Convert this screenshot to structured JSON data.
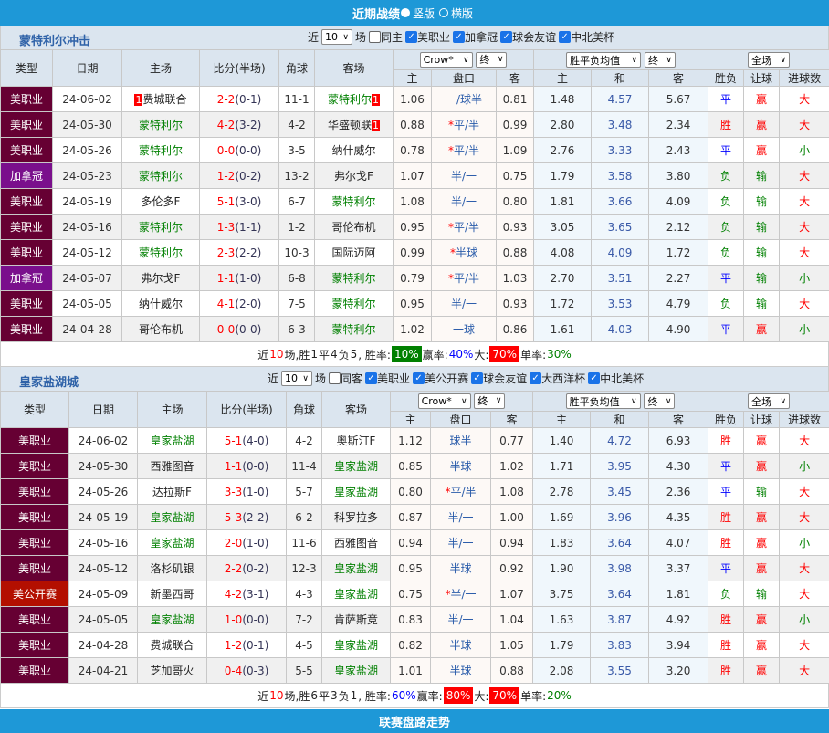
{
  "header": {
    "title": "近期战绩",
    "option1": "竖版",
    "option2": "横版",
    "selected": "竖版"
  },
  "footer": {
    "title": "联赛盘路走势"
  },
  "colors": {
    "header_bg": "#1e98d7",
    "mls": "#660033",
    "cancup": "#7a0f8c",
    "uscup": "#b30f00",
    "win": "#ff0000",
    "draw": "#0000ff",
    "lose": "#008000",
    "focus_team": "#008000"
  },
  "columns": {
    "type": "类型",
    "date": "日期",
    "home": "主场",
    "score": "比分(半场)",
    "corner": "角球",
    "away": "客场",
    "ah_home": "主",
    "ah_line": "盘口",
    "ah_away": "客",
    "eu_home": "主",
    "eu_draw": "和",
    "eu_away": "客",
    "result": "胜负",
    "handicap": "让球",
    "goals": "进球数"
  },
  "sections": [
    {
      "title": "蒙特利尔冲击",
      "near": "近",
      "count": "10",
      "unit": "场",
      "filters": [
        {
          "label": "同主",
          "checked": false
        },
        {
          "label": "美职业",
          "checked": true
        },
        {
          "label": "加拿冠",
          "checked": true
        },
        {
          "label": "球会友谊",
          "checked": true
        },
        {
          "label": "中北美杯",
          "checked": true
        }
      ],
      "selects": {
        "company": "Crow*",
        "ah_phase": "终",
        "eu_type": "胜平负均值",
        "eu_phase": "终",
        "period": "全场"
      },
      "rows": [
        {
          "type": "美职业",
          "type_color": "#660033",
          "date": "24-06-02",
          "home": "费城联合",
          "home_focus": false,
          "home_card": "1",
          "score": "2-2",
          "half": "(0-1)",
          "corner": "11-1",
          "away": "蒙特利尔",
          "away_focus": true,
          "away_card": "1",
          "ah_h": "1.06",
          "star": "",
          "line": "一/球半",
          "ah_a": "0.81",
          "eu_h": "1.48",
          "eu_d": "4.57",
          "eu_a": "5.67",
          "result": "平",
          "handicap": "赢",
          "goals": "大"
        },
        {
          "type": "美职业",
          "type_color": "#660033",
          "date": "24-05-30",
          "home": "蒙特利尔",
          "home_focus": true,
          "home_card": "",
          "score": "4-2",
          "half": "(3-2)",
          "corner": "4-2",
          "away": "华盛顿联",
          "away_focus": false,
          "away_card": "1",
          "ah_h": "0.88",
          "star": "*",
          "line": "平/半",
          "ah_a": "0.99",
          "eu_h": "2.80",
          "eu_d": "3.48",
          "eu_a": "2.34",
          "result": "胜",
          "handicap": "赢",
          "goals": "大"
        },
        {
          "type": "美职业",
          "type_color": "#660033",
          "date": "24-05-26",
          "home": "蒙特利尔",
          "home_focus": true,
          "home_card": "",
          "score": "0-0",
          "half": "(0-0)",
          "corner": "3-5",
          "away": "纳什威尔",
          "away_focus": false,
          "away_card": "",
          "ah_h": "0.78",
          "star": "*",
          "line": "平/半",
          "ah_a": "1.09",
          "eu_h": "2.76",
          "eu_d": "3.33",
          "eu_a": "2.43",
          "result": "平",
          "handicap": "赢",
          "goals": "小"
        },
        {
          "type": "加拿冠",
          "type_color": "#7a0f8c",
          "date": "24-05-23",
          "home": "蒙特利尔",
          "home_focus": true,
          "home_card": "",
          "score": "1-2",
          "half": "(0-2)",
          "corner": "13-2",
          "away": "弗尔戈F",
          "away_focus": false,
          "away_card": "",
          "ah_h": "1.07",
          "star": "",
          "line": "半/一",
          "ah_a": "0.75",
          "eu_h": "1.79",
          "eu_d": "3.58",
          "eu_a": "3.80",
          "result": "负",
          "handicap": "输",
          "goals": "大"
        },
        {
          "type": "美职业",
          "type_color": "#660033",
          "date": "24-05-19",
          "home": "多伦多F",
          "home_focus": false,
          "home_card": "",
          "score": "5-1",
          "half": "(3-0)",
          "corner": "6-7",
          "away": "蒙特利尔",
          "away_focus": true,
          "away_card": "",
          "ah_h": "1.08",
          "star": "",
          "line": "半/一",
          "ah_a": "0.80",
          "eu_h": "1.81",
          "eu_d": "3.66",
          "eu_a": "4.09",
          "result": "负",
          "handicap": "输",
          "goals": "大"
        },
        {
          "type": "美职业",
          "type_color": "#660033",
          "date": "24-05-16",
          "home": "蒙特利尔",
          "home_focus": true,
          "home_card": "",
          "score": "1-3",
          "half": "(1-1)",
          "corner": "1-2",
          "away": "哥伦布机",
          "away_focus": false,
          "away_card": "",
          "ah_h": "0.95",
          "star": "*",
          "line": "平/半",
          "ah_a": "0.93",
          "eu_h": "3.05",
          "eu_d": "3.65",
          "eu_a": "2.12",
          "result": "负",
          "handicap": "输",
          "goals": "大"
        },
        {
          "type": "美职业",
          "type_color": "#660033",
          "date": "24-05-12",
          "home": "蒙特利尔",
          "home_focus": true,
          "home_card": "",
          "score": "2-3",
          "half": "(2-2)",
          "corner": "10-3",
          "away": "国际迈阿",
          "away_focus": false,
          "away_card": "",
          "ah_h": "0.99",
          "star": "*",
          "line": "半球",
          "ah_a": "0.88",
          "eu_h": "4.08",
          "eu_d": "4.09",
          "eu_a": "1.72",
          "result": "负",
          "handicap": "输",
          "goals": "大"
        },
        {
          "type": "加拿冠",
          "type_color": "#7a0f8c",
          "date": "24-05-07",
          "home": "弗尔戈F",
          "home_focus": false,
          "home_card": "",
          "score": "1-1",
          "half": "(1-0)",
          "corner": "6-8",
          "away": "蒙特利尔",
          "away_focus": true,
          "away_card": "",
          "ah_h": "0.79",
          "star": "*",
          "line": "平/半",
          "ah_a": "1.03",
          "eu_h": "2.70",
          "eu_d": "3.51",
          "eu_a": "2.27",
          "result": "平",
          "handicap": "输",
          "goals": "小"
        },
        {
          "type": "美职业",
          "type_color": "#660033",
          "date": "24-05-05",
          "home": "纳什威尔",
          "home_focus": false,
          "home_card": "",
          "score": "4-1",
          "half": "(2-0)",
          "corner": "7-5",
          "away": "蒙特利尔",
          "away_focus": true,
          "away_card": "",
          "ah_h": "0.95",
          "star": "",
          "line": "半/一",
          "ah_a": "0.93",
          "eu_h": "1.72",
          "eu_d": "3.53",
          "eu_a": "4.79",
          "result": "负",
          "handicap": "输",
          "goals": "大"
        },
        {
          "type": "美职业",
          "type_color": "#660033",
          "date": "24-04-28",
          "home": "哥伦布机",
          "home_focus": false,
          "home_card": "",
          "score": "0-0",
          "half": "(0-0)",
          "corner": "6-3",
          "away": "蒙特利尔",
          "away_focus": true,
          "away_card": "",
          "ah_h": "1.02",
          "star": "",
          "line": "一球",
          "ah_a": "0.86",
          "eu_h": "1.61",
          "eu_d": "4.03",
          "eu_a": "4.90",
          "result": "平",
          "handicap": "赢",
          "goals": "小"
        }
      ],
      "summary": {
        "p1": "近",
        "n": "10",
        "p2": "场,胜",
        "w": "1",
        "p3": "平",
        "d": "4",
        "p4": "负",
        "l": "5",
        "p5": ", 胜率:",
        "win_rate": "10%",
        "win_rate_box": "#008000",
        "p6": " 赢率:",
        "cover_rate": "40%",
        "cover_rate_box": "",
        "p7": " 大:",
        "over_rate": "70%",
        "over_rate_box": "#ff0000",
        "p8": " 单率:",
        "odd_rate": "30%"
      }
    },
    {
      "title": "皇家盐湖城",
      "near": "近",
      "count": "10",
      "unit": "场",
      "filters": [
        {
          "label": "同客",
          "checked": false
        },
        {
          "label": "美职业",
          "checked": true
        },
        {
          "label": "美公开赛",
          "checked": true
        },
        {
          "label": "球会友谊",
          "checked": true
        },
        {
          "label": "大西洋杯",
          "checked": true
        },
        {
          "label": "中北美杯",
          "checked": true
        }
      ],
      "selects": {
        "company": "Crow*",
        "ah_phase": "终",
        "eu_type": "胜平负均值",
        "eu_phase": "终",
        "period": "全场"
      },
      "rows": [
        {
          "type": "美职业",
          "type_color": "#660033",
          "date": "24-06-02",
          "home": "皇家盐湖",
          "home_focus": true,
          "home_card": "",
          "score": "5-1",
          "half": "(4-0)",
          "corner": "4-2",
          "away": "奥斯汀F",
          "away_focus": false,
          "away_card": "",
          "ah_h": "1.12",
          "star": "",
          "line": "球半",
          "ah_a": "0.77",
          "eu_h": "1.40",
          "eu_d": "4.72",
          "eu_a": "6.93",
          "result": "胜",
          "handicap": "赢",
          "goals": "大"
        },
        {
          "type": "美职业",
          "type_color": "#660033",
          "date": "24-05-30",
          "home": "西雅图音",
          "home_focus": false,
          "home_card": "",
          "score": "1-1",
          "half": "(0-0)",
          "corner": "11-4",
          "away": "皇家盐湖",
          "away_focus": true,
          "away_card": "",
          "ah_h": "0.85",
          "star": "",
          "line": "半球",
          "ah_a": "1.02",
          "eu_h": "1.71",
          "eu_d": "3.95",
          "eu_a": "4.30",
          "result": "平",
          "handicap": "赢",
          "goals": "小"
        },
        {
          "type": "美职业",
          "type_color": "#660033",
          "date": "24-05-26",
          "home": "达拉斯F",
          "home_focus": false,
          "home_card": "",
          "score": "3-3",
          "half": "(1-0)",
          "corner": "5-7",
          "away": "皇家盐湖",
          "away_focus": true,
          "away_card": "",
          "ah_h": "0.80",
          "star": "*",
          "line": "平/半",
          "ah_a": "1.08",
          "eu_h": "2.78",
          "eu_d": "3.45",
          "eu_a": "2.36",
          "result": "平",
          "handicap": "输",
          "goals": "大"
        },
        {
          "type": "美职业",
          "type_color": "#660033",
          "date": "24-05-19",
          "home": "皇家盐湖",
          "home_focus": true,
          "home_card": "",
          "score": "5-3",
          "half": "(2-2)",
          "corner": "6-2",
          "away": "科罗拉多",
          "away_focus": false,
          "away_card": "",
          "ah_h": "0.87",
          "star": "",
          "line": "半/一",
          "ah_a": "1.00",
          "eu_h": "1.69",
          "eu_d": "3.96",
          "eu_a": "4.35",
          "result": "胜",
          "handicap": "赢",
          "goals": "大"
        },
        {
          "type": "美职业",
          "type_color": "#660033",
          "date": "24-05-16",
          "home": "皇家盐湖",
          "home_focus": true,
          "home_card": "",
          "score": "2-0",
          "half": "(1-0)",
          "corner": "11-6",
          "away": "西雅图音",
          "away_focus": false,
          "away_card": "",
          "ah_h": "0.94",
          "star": "",
          "line": "半/一",
          "ah_a": "0.94",
          "eu_h": "1.83",
          "eu_d": "3.64",
          "eu_a": "4.07",
          "result": "胜",
          "handicap": "赢",
          "goals": "小"
        },
        {
          "type": "美职业",
          "type_color": "#660033",
          "date": "24-05-12",
          "home": "洛杉矶银",
          "home_focus": false,
          "home_card": "",
          "score": "2-2",
          "half": "(0-2)",
          "corner": "12-3",
          "away": "皇家盐湖",
          "away_focus": true,
          "away_card": "",
          "ah_h": "0.95",
          "star": "",
          "line": "半球",
          "ah_a": "0.92",
          "eu_h": "1.90",
          "eu_d": "3.98",
          "eu_a": "3.37",
          "result": "平",
          "handicap": "赢",
          "goals": "大"
        },
        {
          "type": "美公开赛",
          "type_color": "#b30f00",
          "date": "24-05-09",
          "home": "新墨西哥",
          "home_focus": false,
          "home_card": "",
          "score": "4-2",
          "half": "(3-1)",
          "corner": "4-3",
          "away": "皇家盐湖",
          "away_focus": true,
          "away_card": "",
          "ah_h": "0.75",
          "star": "*",
          "line": "半/一",
          "ah_a": "1.07",
          "eu_h": "3.75",
          "eu_d": "3.64",
          "eu_a": "1.81",
          "result": "负",
          "handicap": "输",
          "goals": "大"
        },
        {
          "type": "美职业",
          "type_color": "#660033",
          "date": "24-05-05",
          "home": "皇家盐湖",
          "home_focus": true,
          "home_card": "",
          "score": "1-0",
          "half": "(0-0)",
          "corner": "7-2",
          "away": "肯萨斯竞",
          "away_focus": false,
          "away_card": "",
          "ah_h": "0.83",
          "star": "",
          "line": "半/一",
          "ah_a": "1.04",
          "eu_h": "1.63",
          "eu_d": "3.87",
          "eu_a": "4.92",
          "result": "胜",
          "handicap": "赢",
          "goals": "小"
        },
        {
          "type": "美职业",
          "type_color": "#660033",
          "date": "24-04-28",
          "home": "费城联合",
          "home_focus": false,
          "home_card": "",
          "score": "1-2",
          "half": "(0-1)",
          "corner": "4-5",
          "away": "皇家盐湖",
          "away_focus": true,
          "away_card": "",
          "ah_h": "0.82",
          "star": "",
          "line": "半球",
          "ah_a": "1.05",
          "eu_h": "1.79",
          "eu_d": "3.83",
          "eu_a": "3.94",
          "result": "胜",
          "handicap": "赢",
          "goals": "大"
        },
        {
          "type": "美职业",
          "type_color": "#660033",
          "date": "24-04-21",
          "home": "芝加哥火",
          "home_focus": false,
          "home_card": "",
          "score": "0-4",
          "half": "(0-3)",
          "corner": "5-5",
          "away": "皇家盐湖",
          "away_focus": true,
          "away_card": "",
          "ah_h": "1.01",
          "star": "",
          "line": "半球",
          "ah_a": "0.88",
          "eu_h": "2.08",
          "eu_d": "3.55",
          "eu_a": "3.20",
          "result": "胜",
          "handicap": "赢",
          "goals": "大"
        }
      ],
      "summary": {
        "p1": "近",
        "n": "10",
        "p2": "场,胜",
        "w": "6",
        "p3": "平",
        "d": "3",
        "p4": "负",
        "l": "1",
        "p5": ", 胜率:",
        "win_rate": "60%",
        "win_rate_box": "",
        "p6": " 赢率:",
        "cover_rate": "80%",
        "cover_rate_box": "#ff0000",
        "p7": " 大:",
        "over_rate": "70%",
        "over_rate_box": "#ff0000",
        "p8": " 单率:",
        "odd_rate": "20%"
      }
    }
  ]
}
